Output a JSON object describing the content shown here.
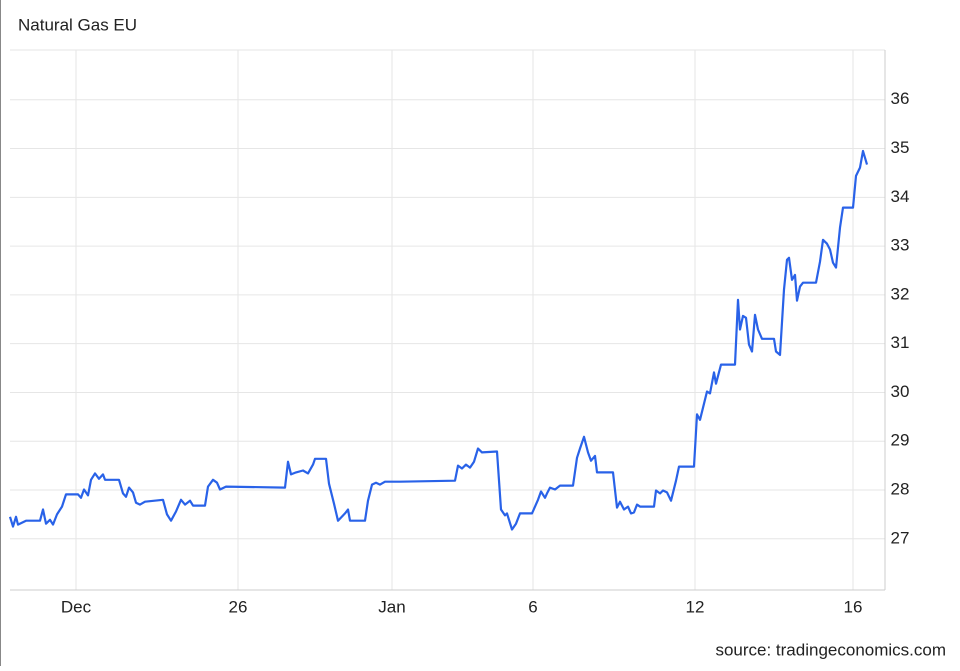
{
  "chart_data": {
    "type": "line",
    "title": "Natural Gas EU",
    "source": "source: tradingeconomics.com",
    "color": "#2962e8",
    "grid": true,
    "x": [
      0,
      3,
      6,
      8,
      16,
      30,
      33,
      36,
      40,
      43,
      47,
      52,
      56,
      68,
      71,
      74,
      78,
      81,
      85,
      89,
      93,
      95,
      109,
      113,
      116,
      119,
      123,
      126,
      130,
      135,
      153,
      157,
      161,
      166,
      171,
      175,
      180,
      183,
      195,
      198,
      203,
      207,
      210,
      216,
      275,
      278,
      281,
      286,
      293,
      298,
      303,
      305,
      316,
      319,
      324,
      328,
      335,
      338,
      340,
      355,
      358,
      362,
      366,
      370,
      375,
      390,
      445,
      448,
      452,
      456,
      460,
      464,
      468,
      472,
      487,
      491,
      495,
      497,
      502,
      506,
      510,
      522,
      528,
      531,
      535,
      537,
      540,
      545,
      550,
      563,
      567,
      570,
      574,
      578,
      581,
      585,
      587,
      603,
      607,
      610,
      614,
      618,
      621,
      624,
      627,
      630,
      644,
      646,
      650,
      653,
      657,
      661,
      666,
      669,
      684,
      687,
      690,
      694,
      697,
      700,
      704,
      706,
      711,
      725,
      728,
      730,
      733,
      736,
      739,
      742,
      745,
      748,
      752,
      764,
      766,
      770,
      774,
      777,
      779,
      782,
      785,
      787,
      790,
      793,
      806,
      810,
      813,
      817,
      820,
      823,
      826,
      830,
      833,
      843,
      846,
      850,
      853,
      857
    ],
    "values": [
      27.45,
      27.25,
      27.45,
      27.29,
      27.37,
      27.37,
      27.6,
      27.31,
      27.39,
      27.29,
      27.5,
      27.66,
      27.91,
      27.91,
      27.84,
      28.01,
      27.89,
      28.21,
      28.34,
      28.23,
      28.32,
      28.21,
      28.21,
      27.93,
      27.86,
      28.05,
      27.95,
      27.74,
      27.7,
      27.76,
      27.8,
      27.5,
      27.37,
      27.56,
      27.8,
      27.7,
      27.78,
      27.68,
      27.68,
      28.07,
      28.21,
      28.15,
      28.01,
      28.07,
      28.05,
      28.58,
      28.32,
      28.36,
      28.4,
      28.34,
      28.52,
      28.64,
      28.64,
      28.13,
      27.72,
      27.37,
      27.52,
      27.6,
      27.37,
      27.37,
      27.78,
      28.11,
      28.15,
      28.11,
      28.17,
      28.17,
      28.19,
      28.5,
      28.44,
      28.52,
      28.46,
      28.58,
      28.85,
      28.77,
      28.79,
      27.6,
      27.48,
      27.52,
      27.19,
      27.31,
      27.52,
      27.52,
      27.8,
      27.97,
      27.84,
      27.93,
      28.05,
      28.01,
      28.09,
      28.09,
      28.66,
      28.85,
      29.09,
      28.77,
      28.6,
      28.7,
      28.36,
      28.36,
      27.64,
      27.76,
      27.6,
      27.66,
      27.52,
      27.54,
      27.7,
      27.66,
      27.66,
      27.99,
      27.93,
      27.99,
      27.95,
      27.78,
      28.19,
      28.48,
      28.48,
      29.55,
      29.44,
      29.77,
      30.02,
      29.98,
      30.41,
      30.18,
      30.57,
      30.57,
      31.9,
      31.29,
      31.57,
      31.53,
      30.98,
      30.84,
      31.59,
      31.29,
      31.1,
      31.1,
      30.84,
      30.77,
      32.11,
      32.72,
      32.76,
      32.31,
      32.41,
      31.88,
      32.17,
      32.25,
      32.25,
      32.68,
      33.13,
      33.05,
      32.93,
      32.66,
      32.56,
      33.38,
      33.79,
      33.79,
      34.44,
      34.61,
      34.95,
      34.67
    ],
    "xlim": [
      0,
      875
    ],
    "xticks": [
      {
        "value": 66,
        "label": "Dec"
      },
      {
        "value": 228,
        "label": "26"
      },
      {
        "value": 382,
        "label": "Jan"
      },
      {
        "value": 523,
        "label": "6"
      },
      {
        "value": 685,
        "label": "12"
      },
      {
        "value": 843,
        "label": "16"
      }
    ],
    "ylim": [
      25.95,
      37.02
    ],
    "yticks": [
      27,
      28,
      29,
      30,
      31,
      32,
      33,
      34,
      35,
      36
    ]
  }
}
